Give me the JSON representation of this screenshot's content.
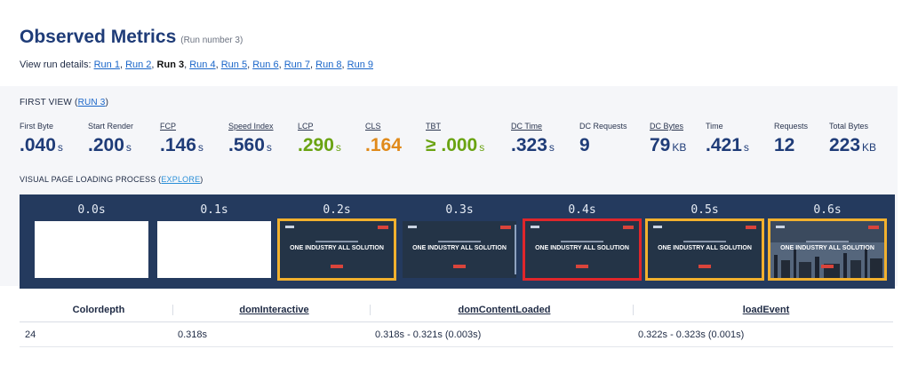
{
  "header": {
    "title": "Observed Metrics",
    "run_number": "(Run number 3)"
  },
  "run_details": {
    "prefix": "View run details:",
    "runs": [
      "Run 1",
      "Run 2",
      "Run 3",
      "Run 4",
      "Run 5",
      "Run 6",
      "Run 7",
      "Run 8",
      "Run 9"
    ],
    "current": "Run 3"
  },
  "first_view": {
    "label": "FIRST VIEW",
    "link": "RUN 3"
  },
  "metrics": [
    {
      "label": "First Byte",
      "value": ".040",
      "unit": "s"
    },
    {
      "label": "Start Render",
      "value": ".200",
      "unit": "s"
    },
    {
      "label": "FCP",
      "value": ".146",
      "unit": "s"
    },
    {
      "label": "Speed Index",
      "value": ".560",
      "unit": "s"
    },
    {
      "label": "LCP",
      "value": ".290",
      "unit": "s",
      "color": "green"
    },
    {
      "label": "CLS",
      "value": ".164",
      "unit": "",
      "color": "orange"
    },
    {
      "label": "TBT",
      "value": "≥ .000",
      "unit": "s",
      "color": "green"
    },
    {
      "label": "DC Time",
      "value": ".323",
      "unit": "s"
    },
    {
      "label": "DC Requests",
      "value": "9",
      "unit": ""
    },
    {
      "label": "DC Bytes",
      "value": "79",
      "unit": "KB"
    },
    {
      "label": "Time",
      "value": ".421",
      "unit": "s"
    },
    {
      "label": "Requests",
      "value": "12",
      "unit": ""
    },
    {
      "label": "Total Bytes",
      "value": "223",
      "unit": "KB"
    }
  ],
  "visual_progress": {
    "label": "VISUAL PAGE LOADING PROCESS",
    "explore": "EXPLORE",
    "frames": [
      {
        "time": "0.0s",
        "state": "blank",
        "highlight": "none"
      },
      {
        "time": "0.1s",
        "state": "blank",
        "highlight": "none"
      },
      {
        "time": "0.2s",
        "state": "hero",
        "highlight": "yellow",
        "headline": "ONE INDUSTRY ALL SOLUTION"
      },
      {
        "time": "0.3s",
        "state": "hero",
        "highlight": "none",
        "headline": "ONE INDUSTRY ALL SOLUTION"
      },
      {
        "time": "0.4s",
        "state": "hero",
        "highlight": "red",
        "headline": "ONE INDUSTRY ALL SOLUTION"
      },
      {
        "time": "0.5s",
        "state": "hero",
        "highlight": "yellow",
        "headline": "ONE INDUSTRY ALL SOLUTION"
      },
      {
        "time": "0.6s",
        "state": "hero-image",
        "highlight": "yellow",
        "headline": "ONE INDUSTRY ALL SOLUTION"
      }
    ],
    "colors": {
      "strip_bg": "#243a5e",
      "yellow": "#f2b12e",
      "red": "#e0262b"
    }
  },
  "table": {
    "headers": [
      "Colordepth",
      "domInteractive",
      "domContentLoaded",
      "loadEvent"
    ],
    "rows": [
      [
        "24",
        "0.318s",
        "0.318s - 0.321s (0.003s)",
        "0.322s - 0.323s (0.001s)"
      ]
    ]
  },
  "colors": {
    "title": "#1f3c78",
    "link": "#1a66c9",
    "green": "#6aa312",
    "orange": "#e08a1b"
  }
}
